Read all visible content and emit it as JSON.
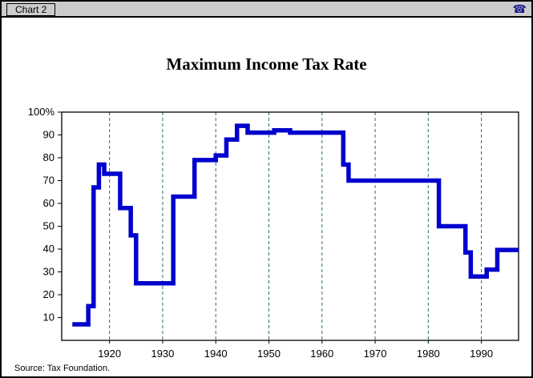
{
  "window": {
    "title": "Chart 2"
  },
  "titlebar": {
    "icon": "phone-icon",
    "icon_glyph": "☎"
  },
  "footer": {
    "source": "Source:  Tax Foundation."
  },
  "chart_data": {
    "type": "line",
    "step": true,
    "title": "Maximum Income Tax Rate",
    "xlabel": "",
    "ylabel": "",
    "xlim": [
      1911,
      1997
    ],
    "ylim": [
      0,
      100
    ],
    "x_ticks": [
      1920,
      1930,
      1940,
      1950,
      1960,
      1970,
      1980,
      1990
    ],
    "y_ticks": [
      10,
      20,
      30,
      40,
      50,
      60,
      70,
      80,
      90,
      100
    ],
    "y_top_label": "100%",
    "grid": "vertical-dashed",
    "legend": "none",
    "line_color": "#0000CD",
    "grid_color": "#2E6E6E",
    "axis_color": "#000000",
    "points": [
      [
        1913,
        7
      ],
      [
        1916,
        15
      ],
      [
        1917,
        67
      ],
      [
        1918,
        77
      ],
      [
        1919,
        73
      ],
      [
        1922,
        58
      ],
      [
        1924,
        46
      ],
      [
        1925,
        25
      ],
      [
        1932,
        63
      ],
      [
        1936,
        79
      ],
      [
        1940,
        81
      ],
      [
        1942,
        88
      ],
      [
        1944,
        94
      ],
      [
        1946,
        91
      ],
      [
        1951,
        92
      ],
      [
        1954,
        91
      ],
      [
        1964,
        77
      ],
      [
        1965,
        70
      ],
      [
        1982,
        50
      ],
      [
        1987,
        38.5
      ],
      [
        1988,
        28
      ],
      [
        1991,
        31
      ],
      [
        1993,
        39.6
      ],
      [
        1997,
        39.6
      ]
    ]
  }
}
